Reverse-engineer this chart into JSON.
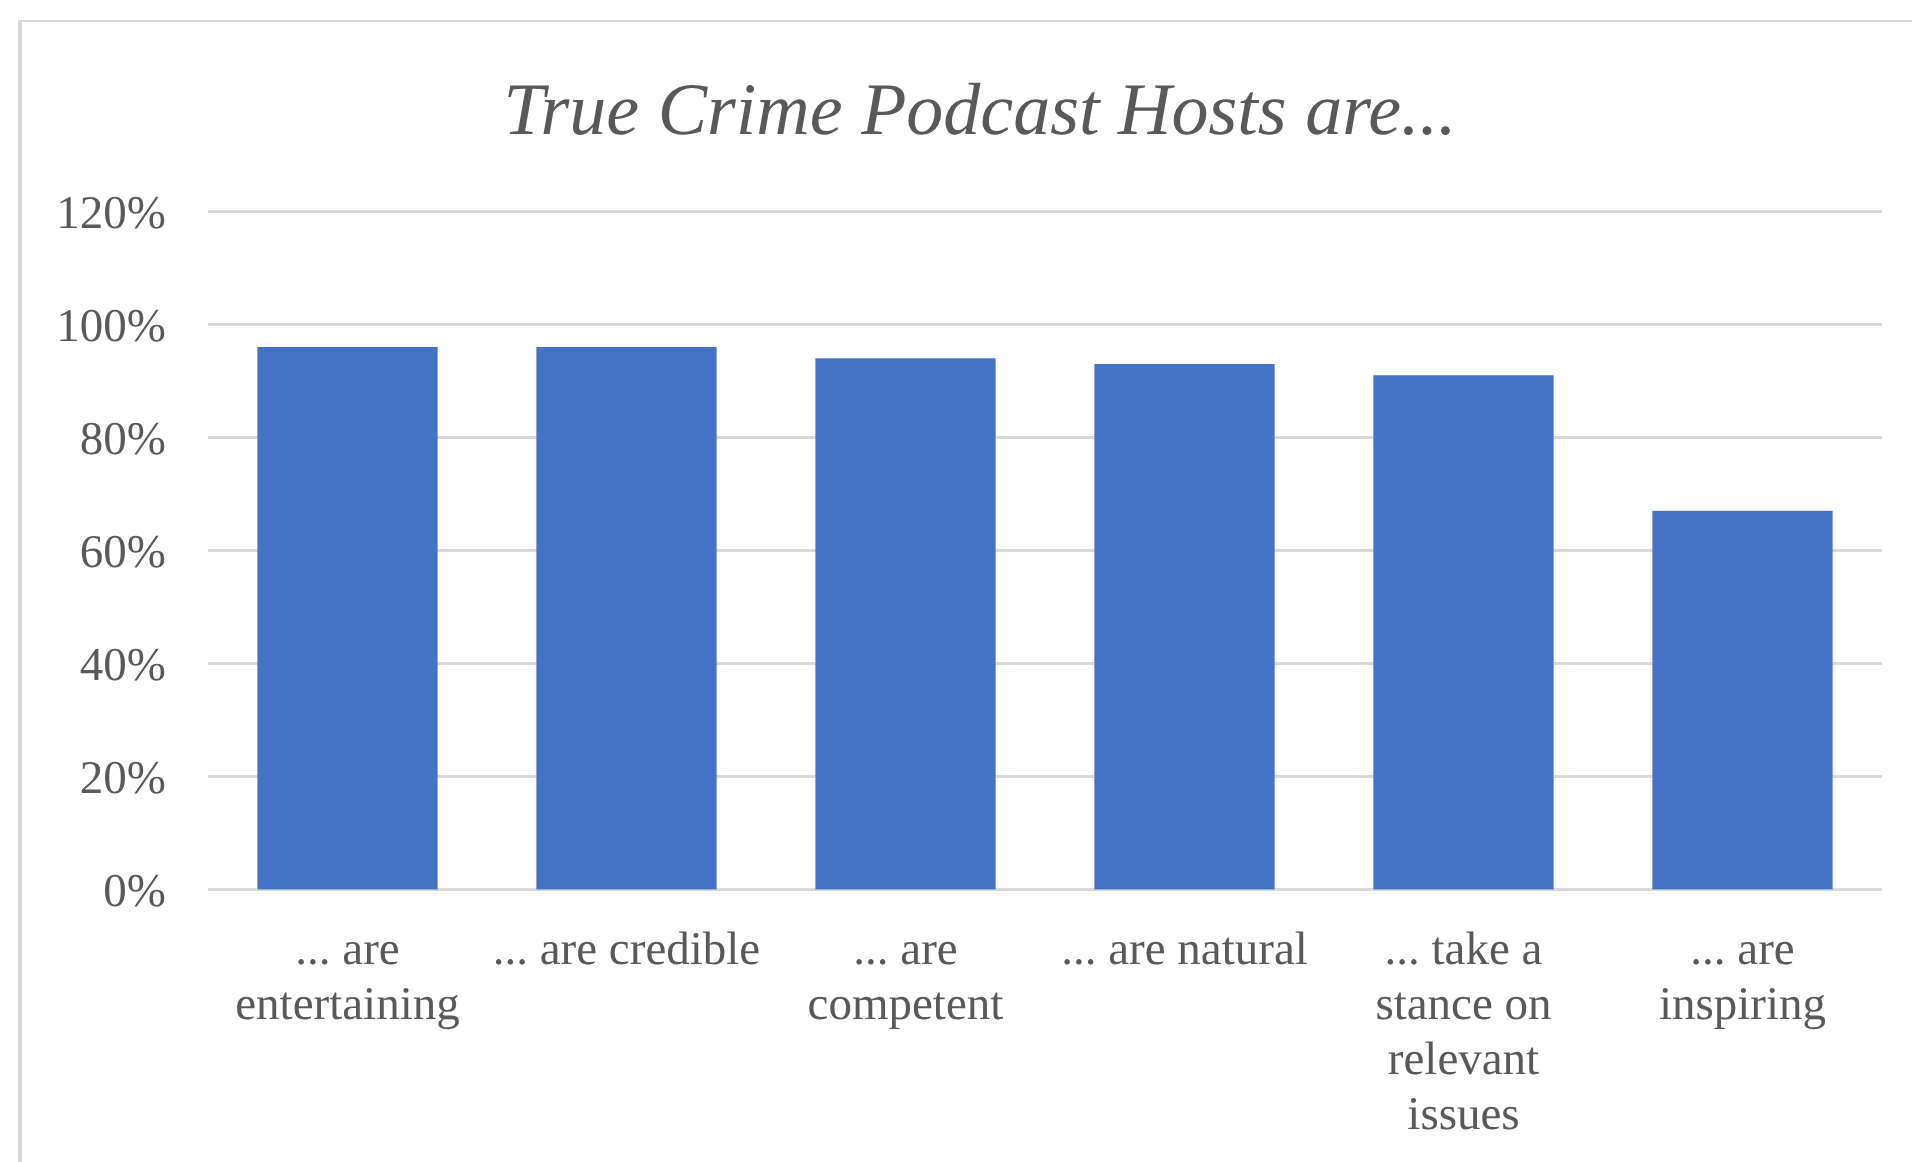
{
  "chart_data": {
    "type": "bar",
    "title": "True Crime Podcast Hosts are...",
    "categories": [
      "... are entertaining",
      "... are credible",
      "... are competent",
      "... are natural",
      "... take a stance on relevant issues",
      "... are inspiring"
    ],
    "values": [
      96,
      96,
      94,
      93,
      91,
      67
    ],
    "color": "#4472c4",
    "ylim": [
      0,
      120
    ],
    "yticks": [
      {
        "value": 0,
        "label": "0%"
      },
      {
        "value": 20,
        "label": "20%"
      },
      {
        "value": 40,
        "label": "40%"
      },
      {
        "value": 60,
        "label": "60%"
      },
      {
        "value": 80,
        "label": "80%"
      },
      {
        "value": 100,
        "label": "100%"
      },
      {
        "value": 120,
        "label": "120%"
      }
    ],
    "grid": "y"
  }
}
